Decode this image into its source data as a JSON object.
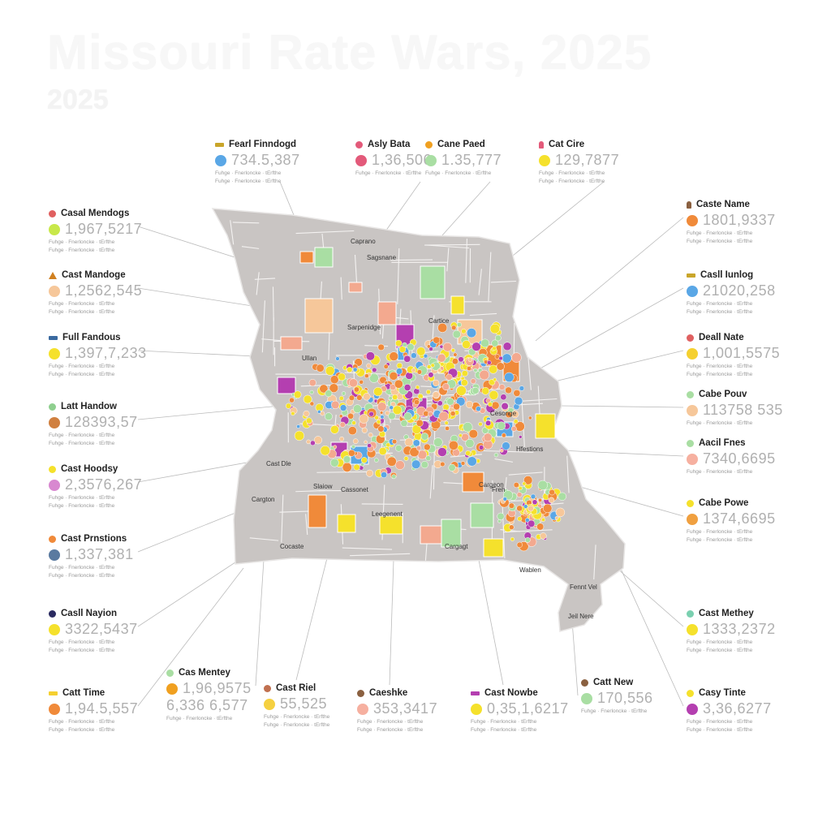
{
  "title": "Missouri Rate Wars, 2025",
  "subtitle": "2025",
  "colors": {
    "land": "#c9c5c3",
    "border": "#ffffff",
    "yellow": "#f5e12c",
    "orange": "#f08a3a",
    "magenta": "#b43fb0",
    "green": "#a9dea3",
    "peach": "#f6c79a",
    "salmon": "#f3a98f",
    "blue": "#5aa7e6",
    "leader": "#bbbbbb"
  },
  "map_labels": [
    "Sarpenidge",
    "Sagsnane",
    "Caprano",
    "Ullan",
    "Cast Dle",
    "Slaiow",
    "Cargton",
    "Cocaste",
    "Cassonet",
    "Cargagt",
    "Leegenent",
    "Hfestions",
    "Cargeon",
    "Cesonge",
    "Freh",
    "Cartice",
    "Wablen",
    "Fennt Vel",
    "Jeil Nere"
  ],
  "callouts": [
    {
      "label": "Fearl Finndogd",
      "value": "734.5,387",
      "icon": "flag-icon",
      "head_color": "#c9a52a",
      "dot_color": "#5aa7e6",
      "fine": [
        "Fuhge · Fnerloncke · tErfthe",
        "Fuhge · Fnerloncke · tErfthe"
      ]
    },
    {
      "label": "Asly Bata",
      "value": "1,36,506",
      "icon": "dot-icon",
      "head_color": "#e35a7a",
      "dot_color": "#e35a7a",
      "fine": [
        "Fuhge · Fnerloncke · tErfthe"
      ]
    },
    {
      "label": "Cane Paed",
      "value": "1.35,777",
      "icon": "dot-icon",
      "head_color": "#f0a020",
      "dot_color": "#a9dea3",
      "fine": [
        "Fuhge · Fnerloncke · tErfthe"
      ]
    },
    {
      "label": "Cat Cire",
      "value": "129,7877",
      "icon": "person-icon",
      "head_color": "#e35a7a",
      "dot_color": "#f5e12c",
      "fine": [
        "Fuhge · Fnerloncke · tErfthe",
        "Fuhge · Fnerloncke · tErfthe"
      ]
    },
    {
      "label": "Casal Mendogs",
      "value": "1,967,5217",
      "icon": "dot-icon",
      "head_color": "#e06060",
      "dot_color": "#c8e84a",
      "fine": [
        "Fuhge · Fnerloncke · tErfthe",
        "Fuhge · Fnerloncke · tErfthe"
      ]
    },
    {
      "label": "Cast Mandoge",
      "value": "1,2562,545",
      "icon": "triangle-icon",
      "head_color": "#d08020",
      "dot_color": "#f6c79a",
      "fine": [
        "Fuhge · Fnerloncke · tErfthe",
        "Fuhge · Fnerloncke · tErfthe"
      ]
    },
    {
      "label": "Full Fandous",
      "value": "1,397,7,233",
      "icon": "flag-icon",
      "head_color": "#3a6aa0",
      "dot_color": "#f5e12c",
      "fine": [
        "Fuhge · Fnerloncke · tErfthe",
        "Fuhge · Fnerloncke · tErfthe"
      ]
    },
    {
      "label": "Latt Handow",
      "value": "128393,57",
      "icon": "dot-icon",
      "head_color": "#8fcf8f",
      "dot_color": "#d08040",
      "fine": [
        "Fuhge · Fnerloncke · tErfthe",
        "Fuhge · Fnerloncke · tErfthe"
      ]
    },
    {
      "label": "Cast Hoodsy",
      "value": "2,3576,267",
      "icon": "dot-icon",
      "head_color": "#f5e12c",
      "dot_color": "#d888d0",
      "fine": [
        "Fuhge · Fnerloncke · tErfthe",
        "Fuhge · Fnerloncke · tErfthe"
      ]
    },
    {
      "label": "Cast Prnstions",
      "value": "1,337,381",
      "icon": "dot-icon",
      "head_color": "#f08a3a",
      "dot_color": "#5a7aa0",
      "fine": [
        "Fuhge · Fnerloncke · tErfthe",
        "Fuhge · Fnerloncke · tErfthe"
      ]
    },
    {
      "label": "Casll Nayion",
      "value": "3322,5437",
      "icon": "dot-icon",
      "head_color": "#2a2a60",
      "dot_color": "#f5e12c",
      "fine": [
        "Fuhge · Fnerloncke · tErfthe",
        "Fuhge · Fnerloncke · tErfthe"
      ]
    },
    {
      "label": "Catt Time",
      "value": "1,94.5,557",
      "icon": "dash-icon",
      "head_color": "#f5d030",
      "dot_color": "#f08a3a",
      "fine": [
        "Fuhge · Fnerloncke · tErfthe",
        "Fuhge · Fnerloncke · tErfthe"
      ]
    },
    {
      "label": "Cas Mentey",
      "value": "1,96,9575",
      "value2": "6,336 6,577",
      "icon": "dot-icon",
      "head_color": "#a9dea3",
      "dot_color": "#f0a020",
      "fine": [
        "Fuhge · Fnerloncke · tErfthe"
      ]
    },
    {
      "label": "Cast Riel",
      "value": "55,525",
      "icon": "dot-icon",
      "head_color": "#c07050",
      "dot_color": "#f5d040",
      "fine": [
        "Fuhge · Fnerloncke · tErfthe",
        "Fuhge · Fnerloncke · tErfthe"
      ]
    },
    {
      "label": "Caeshke",
      "value": "353,3417",
      "icon": "dot-icon",
      "head_color": "#8a6040",
      "dot_color": "#f6b0a0",
      "fine": [
        "Fuhge · Fnerloncke · tErfthe",
        "Fuhge · Fnerloncke · tErfthe"
      ]
    },
    {
      "label": "Cast Nowbe",
      "value": "0,35,1,6217",
      "icon": "dash-icon",
      "head_color": "#b43fb0",
      "dot_color": "#f5e12c",
      "fine": [
        "Fuhge · Fnerloncke · tErfthe",
        "Fuhge · Fnerloncke · tErfthe"
      ]
    },
    {
      "label": "Catt New",
      "value": "170,556",
      "icon": "dot-icon",
      "head_color": "#8a6040",
      "dot_color": "#a9dea3",
      "fine": [
        "Fuhge · Fnerloncke · tErfthe"
      ]
    },
    {
      "label": "Casy Tinte",
      "value": "3,36,6277",
      "icon": "dot-icon",
      "head_color": "#f5e12c",
      "dot_color": "#b43fb0",
      "fine": [
        "Fuhge · Fnerloncke · tErfthe",
        "Fuhge · Fnerloncke · tErfthe"
      ]
    },
    {
      "label": "Caste Name",
      "value": "1801,9337",
      "icon": "person-icon",
      "head_color": "#8a6040",
      "dot_color": "#f08a3a",
      "fine": [
        "Fuhge · Fnerloncke · tErfthe",
        "Fuhge · Fnerloncke · tErfthe"
      ]
    },
    {
      "label": "Casll Iunlog",
      "value": "21020,258",
      "icon": "dash-icon",
      "head_color": "#c9a52a",
      "dot_color": "#5aa7e6",
      "fine": [
        "Fuhge · Fnerloncke · tErfthe",
        "Fuhge · Fnerloncke · tErfthe"
      ]
    },
    {
      "label": "Deall Nate",
      "value": "1,001,5575",
      "icon": "dot-icon",
      "head_color": "#e06060",
      "dot_color": "#f5d030",
      "fine": [
        "Fuhge · Fnerloncke · tErfthe",
        "Fuhge · Fnerloncke · tErfthe"
      ]
    },
    {
      "label": "Cabe Pouv",
      "value": "113758 535",
      "icon": "dot-icon",
      "head_color": "#a9dea3",
      "dot_color": "#f6c79a",
      "fine": [
        "Fuhge · Fnerloncke · tErfthe"
      ]
    },
    {
      "label": "Aacil Fnes",
      "value": "7340,6695",
      "icon": "dot-icon",
      "head_color": "#a9dea3",
      "dot_color": "#f6b0a0",
      "fine": [
        "Fuhge · Fnerloncke · tErfthe"
      ]
    },
    {
      "label": "Cabe Powe",
      "value": "1374,6695",
      "icon": "dot-icon",
      "head_color": "#f5e12c",
      "dot_color": "#f0a040",
      "fine": [
        "Fuhge · Fnerloncke · tErfthe",
        "Fuhge · Fnerloncke · tErfthe"
      ]
    },
    {
      "label": "Cast Methey",
      "value": "1333,2372",
      "icon": "dot-icon",
      "head_color": "#7ad0b0",
      "dot_color": "#f5e12c",
      "fine": [
        "Fuhge · Fnerloncke · tErfthe",
        "Fuhge · Fnerloncke · tErfthe"
      ]
    }
  ]
}
